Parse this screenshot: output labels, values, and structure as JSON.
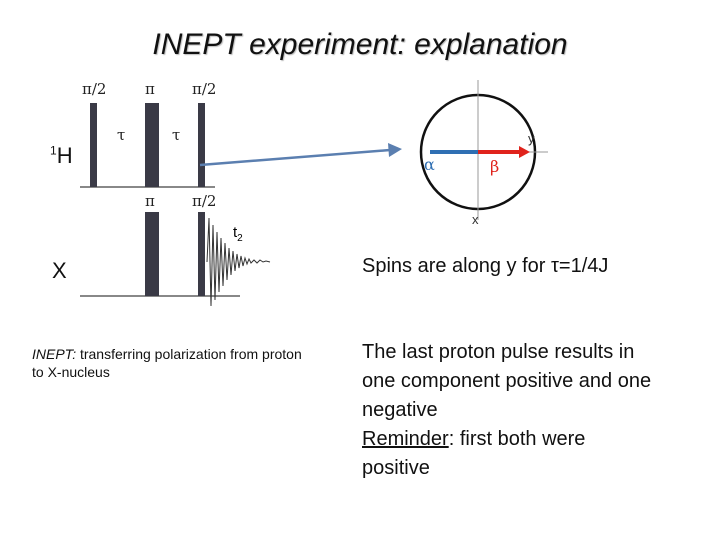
{
  "title": "INEPT experiment: explanation",
  "proton_channel": {
    "label_sup": "1",
    "label": "H",
    "pulse_labels": [
      "π/2",
      "π",
      "π/2"
    ],
    "delay_labels": [
      "τ",
      "τ"
    ]
  },
  "x_channel": {
    "label": "X",
    "pulse_labels": [
      "π",
      "π/2"
    ],
    "acq_label": "t",
    "acq_sub": "2"
  },
  "vector_diagram": {
    "axis_y": "y",
    "axis_x": "x",
    "alpha": "α",
    "beta": "β",
    "colors": {
      "alpha": "#2f6fb3",
      "beta": "#e0231c",
      "arrow": "#5b7fb0"
    }
  },
  "caption_left": {
    "italic": "INEPT:",
    "rest": " transferring polarization from proton to X-nucleus"
  },
  "spins_note": "Spins are along y for τ=1/4J",
  "last_pulse_text": "The last proton pulse results in one component positive and one negative",
  "reminder_label": "Reminder",
  "reminder_rest": ": first both were positive"
}
